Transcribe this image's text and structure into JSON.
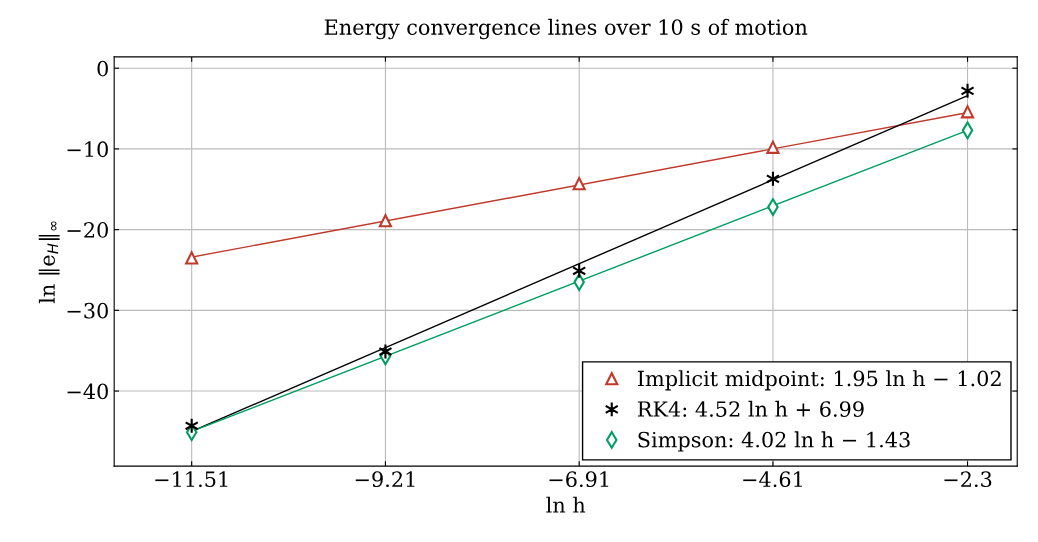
{
  "chart_data": {
    "type": "scatter",
    "title": "Energy convergence lines over 10 s of motion",
    "xlabel": "ln h",
    "ylabel": "ln ‖e$_{H}$‖$_{∞}$",
    "xlim": [
      -12.43,
      -1.71
    ],
    "ylim": [
      -49.3,
      1.4
    ],
    "xticks": [
      {
        "value": -11.51,
        "label": "−11.51"
      },
      {
        "value": -9.21,
        "label": "−9.21"
      },
      {
        "value": -6.91,
        "label": "−6.91"
      },
      {
        "value": -4.61,
        "label": "−4.61"
      },
      {
        "value": -2.3,
        "label": "−2.3"
      }
    ],
    "yticks": [
      0,
      {
        "value": -10,
        "label": "−10"
      },
      {
        "value": -20,
        "label": "−20"
      },
      {
        "value": -30,
        "label": "−30"
      },
      {
        "value": -40,
        "label": "−40"
      }
    ],
    "grid": true,
    "legend": "bottom right",
    "series": [
      {
        "type": "line",
        "color": "#c0392b",
        "marker": "none",
        "x": [
          -11.51,
          -2.3
        ],
        "values": [
          -23.4,
          -5.5
        ]
      },
      {
        "type": "line",
        "color": "#000000",
        "marker": "none",
        "x": [
          -11.51,
          -2.3
        ],
        "values": [
          -45.0,
          -3.4
        ]
      },
      {
        "type": "line",
        "color": "#009e60",
        "marker": "none",
        "x": [
          -11.51,
          -2.3
        ],
        "values": [
          -45.0,
          -7.7
        ]
      },
      {
        "name": "Implicit midpoint: 1.95 ln h − 1.02",
        "color": "#c0392b",
        "marker": "triangle",
        "x": [
          -11.51,
          -9.21,
          -6.91,
          -4.61,
          -2.3
        ],
        "values": [
          -23.5,
          -18.9,
          -14.3,
          -9.8,
          -5.4
        ]
      },
      {
        "name": "RK4: 4.52 ln h + 6.99",
        "color": "#000000",
        "marker": "cross",
        "x": [
          -11.51,
          -9.21,
          -6.91,
          -4.61,
          -2.3
        ],
        "values": [
          -44.3,
          -35.1,
          -25.1,
          -13.7,
          -2.8
        ]
      },
      {
        "name": "Simpson: 4.02 ln h − 1.43",
        "color": "#009e60",
        "marker": "diamond",
        "x": [
          -11.51,
          -9.21,
          -6.91,
          -4.61,
          -2.3
        ],
        "values": [
          -45.1,
          -35.7,
          -26.5,
          -17.2,
          -7.7
        ]
      }
    ]
  }
}
